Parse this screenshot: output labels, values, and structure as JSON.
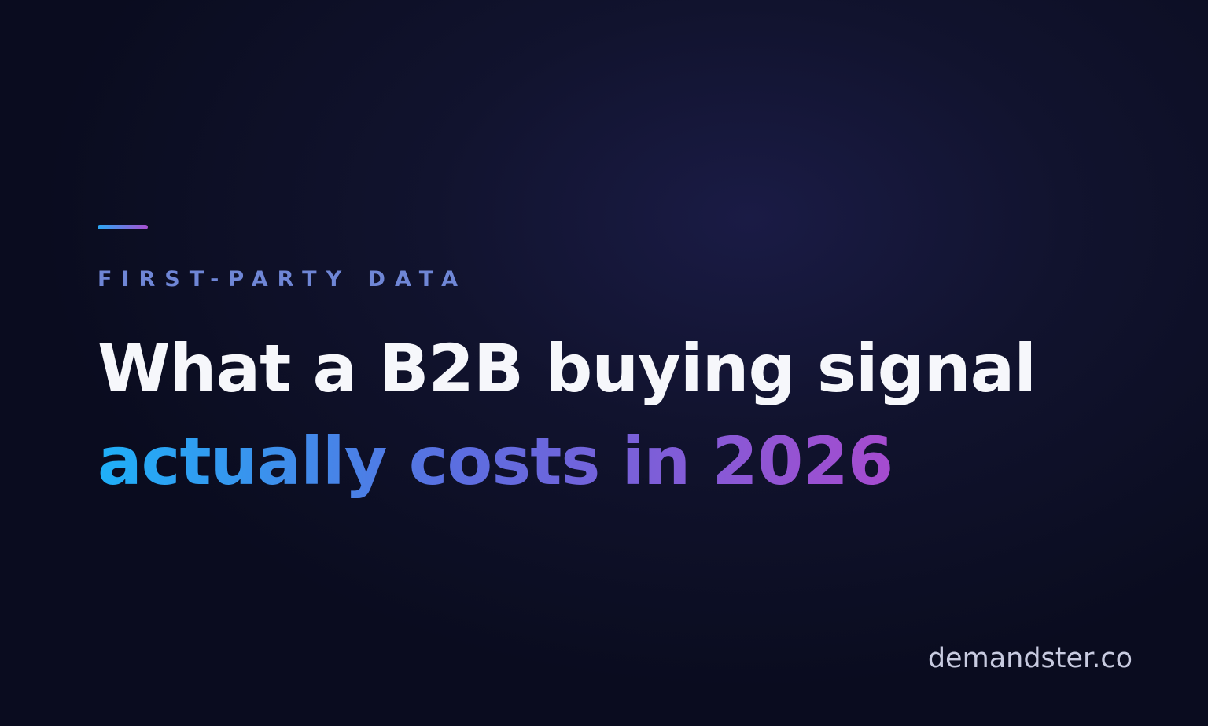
{
  "eyebrow": "FIRST-PARTY DATA",
  "headline": {
    "line1": "What a B2B buying signal",
    "line2": "actually costs in 2026"
  },
  "footer": {
    "domain": "demandster.co"
  }
}
